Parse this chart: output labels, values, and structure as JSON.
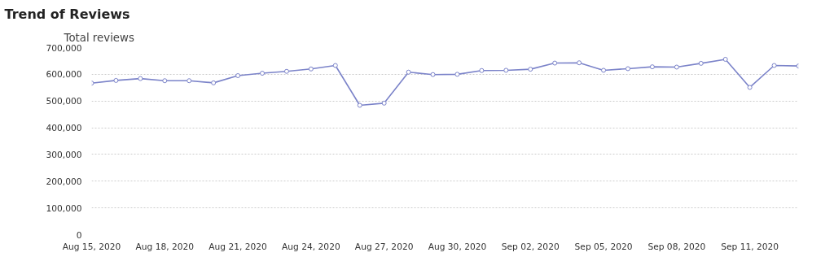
{
  "chart_data": {
    "type": "line",
    "title": "Trend of Reviews",
    "ylabel": "Total reviews",
    "x": [
      "2020-08-15",
      "2020-08-16",
      "2020-08-17",
      "2020-08-18",
      "2020-08-19",
      "2020-08-20",
      "2020-08-21",
      "2020-08-22",
      "2020-08-23",
      "2020-08-24",
      "2020-08-25",
      "2020-08-26",
      "2020-08-27",
      "2020-08-28",
      "2020-08-29",
      "2020-08-30",
      "2020-08-31",
      "2020-09-01",
      "2020-09-02",
      "2020-09-03",
      "2020-09-04",
      "2020-09-05",
      "2020-09-06",
      "2020-09-07",
      "2020-09-08",
      "2020-09-09",
      "2020-09-10",
      "2020-09-11",
      "2020-09-12",
      "2020-09-13"
    ],
    "series": [
      {
        "color": "#7b83c9",
        "values": [
          567000,
          577000,
          584000,
          576000,
          576000,
          568000,
          595000,
          604000,
          611000,
          620000,
          633000,
          484000,
          492000,
          608000,
          599000,
          600000,
          614000,
          615000,
          619000,
          642000,
          643000,
          615000,
          621000,
          628000,
          627000,
          641000,
          656000,
          551000,
          633000,
          631000
        ]
      }
    ],
    "xlim": [
      "2020-08-15",
      "2020-09-13"
    ],
    "xticks": [
      {
        "value": "2020-08-15",
        "label": "Aug 15, 2020"
      },
      {
        "value": "2020-08-18",
        "label": "Aug 18, 2020"
      },
      {
        "value": "2020-08-21",
        "label": "Aug 21, 2020"
      },
      {
        "value": "2020-08-24",
        "label": "Aug 24, 2020"
      },
      {
        "value": "2020-08-27",
        "label": "Aug 27, 2020"
      },
      {
        "value": "2020-08-30",
        "label": "Aug 30, 2020"
      },
      {
        "value": "2020-09-02",
        "label": "Sep 02, 2020"
      },
      {
        "value": "2020-09-05",
        "label": "Sep 05, 2020"
      },
      {
        "value": "2020-09-08",
        "label": "Sep 08, 2020"
      },
      {
        "value": "2020-09-11",
        "label": "Sep 11, 2020"
      }
    ],
    "ylim": [
      0,
      700000
    ],
    "yticks": [
      0,
      {
        "value": 100000,
        "label": "100,000"
      },
      {
        "value": 200000,
        "label": "200,000"
      },
      {
        "value": 300000,
        "label": "300,000"
      },
      {
        "value": 400000,
        "label": "400,000"
      },
      {
        "value": 500000,
        "label": "500,000"
      },
      {
        "value": 600000,
        "label": "600,000"
      },
      {
        "value": 700000,
        "label": "700,000"
      }
    ],
    "grid": "y",
    "marker": "circle",
    "line_style": "solid"
  }
}
